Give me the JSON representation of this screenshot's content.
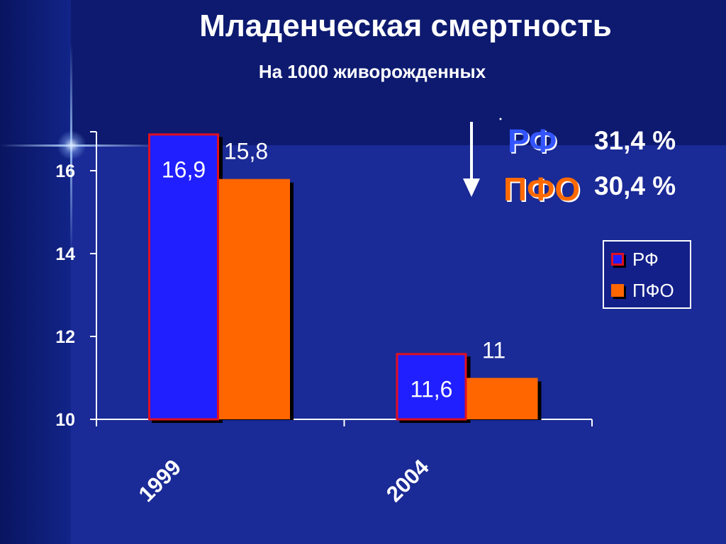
{
  "title": "Младенческая смертность",
  "subtitle": "На 1000 живорожденных",
  "change": {
    "items": [
      {
        "label": "РФ",
        "value": "31,4 %"
      },
      {
        "label": "ПФО",
        "value": "30,4 %"
      }
    ]
  },
  "legend": {
    "items": [
      {
        "label": "РФ"
      },
      {
        "label": "ПФО"
      }
    ]
  },
  "colors": {
    "rf_fill": "#1f1fff",
    "rf_border": "#e01020",
    "pfo_fill": "#ff6600",
    "axis": "#ffffff"
  },
  "chart_data": {
    "type": "bar",
    "categories": [
      "1999",
      "2004"
    ],
    "series": [
      {
        "name": "РФ",
        "values": [
          16.9,
          11.6
        ],
        "labels": [
          "16,9",
          "11,6"
        ]
      },
      {
        "name": "ПФО",
        "values": [
          15.8,
          11
        ],
        "labels": [
          "15,8",
          "11"
        ]
      }
    ],
    "ylim": [
      10,
      17
    ],
    "yticks": [
      10,
      12,
      14,
      16
    ],
    "legend_position": "right",
    "grid": false
  }
}
